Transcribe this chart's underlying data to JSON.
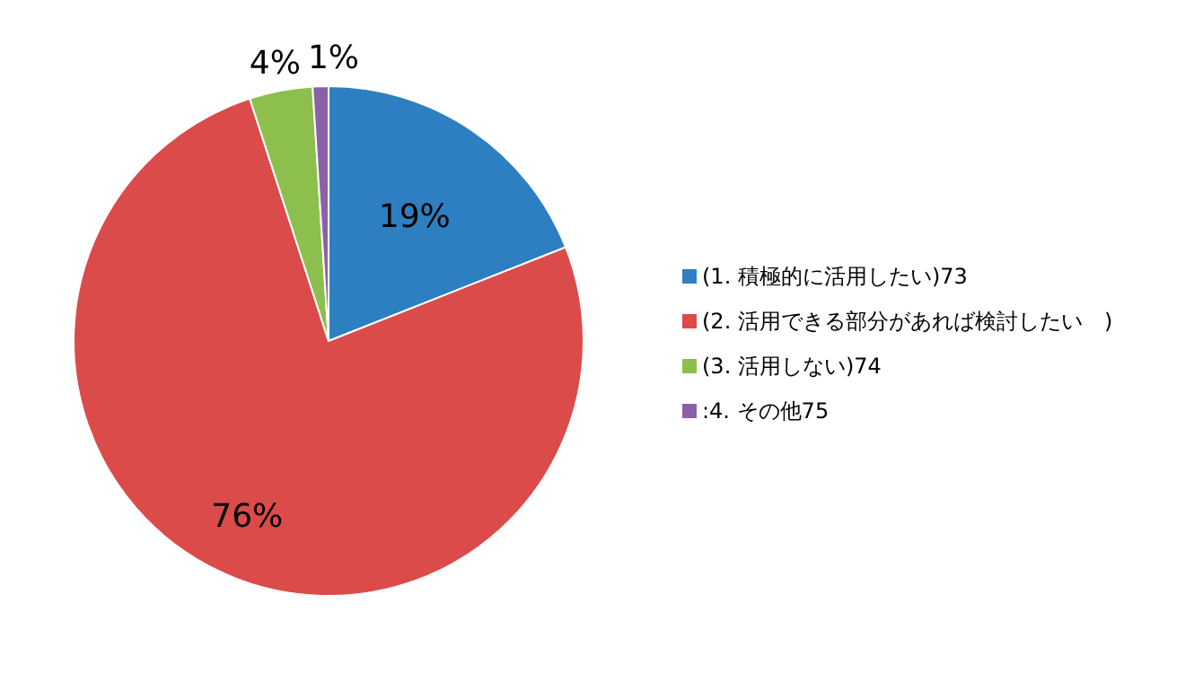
{
  "chart_data": {
    "type": "pie",
    "categories": [
      "(1. 積極的に活用したい)73",
      "(2. 活用できる部分があれば検討したい　)",
      "(3. 活用しない)74",
      ":4. その他75"
    ],
    "values": [
      19,
      76,
      4,
      1
    ],
    "colors": [
      "#2e7fc1",
      "#db4b4a",
      "#8cbf4d",
      "#8a61a8"
    ],
    "value_labels": [
      "19%",
      "76%",
      "4%",
      "1%"
    ],
    "legend": "right"
  }
}
